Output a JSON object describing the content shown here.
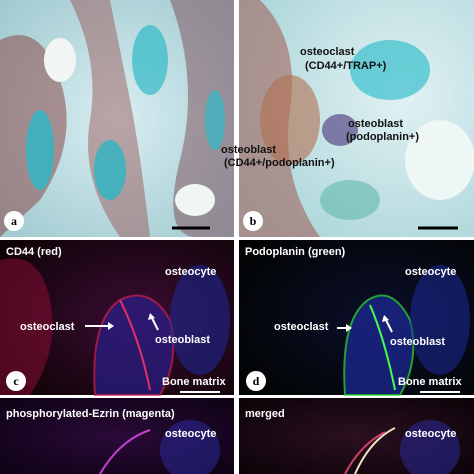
{
  "panels": [
    {
      "label": "a"
    },
    {
      "label": "b",
      "annotations": [
        "osteoclast",
        "(CD44+/TRAP+)",
        "osteoblast",
        "(podoplanin+)",
        "osteoblast",
        "(CD44+/podoplanin+)"
      ]
    },
    {
      "label": "c",
      "title": "CD44 (red)",
      "annotations": [
        "osteocyte",
        "osteoclast",
        "osteoblast"
      ],
      "footer": "Bone matrix"
    },
    {
      "label": "d",
      "title": "Podoplanin (green)",
      "annotations": [
        "osteocyte",
        "osteoclast",
        "osteoblast"
      ],
      "footer": "Bone matrix"
    },
    {
      "title": "phosphorylated-Ezrin (magenta)",
      "annotations": [
        "osteocyte"
      ]
    },
    {
      "title": "merged",
      "annotations": [
        "osteocyte"
      ]
    }
  ]
}
